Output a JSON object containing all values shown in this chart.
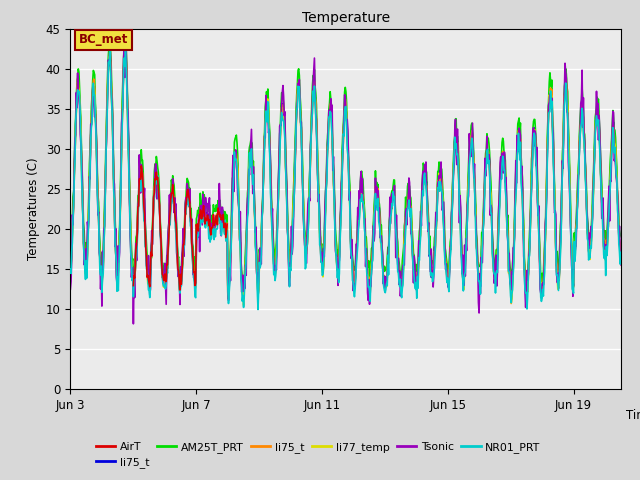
{
  "title": "Temperature",
  "ylabel": "Temperatures (C)",
  "ylim": [
    0,
    45
  ],
  "xlim": [
    0,
    17.5
  ],
  "annotation_text": "BC_met",
  "fig_bg": "#d8d8d8",
  "ax_bg": "#ebebeb",
  "grid_color": "#ffffff",
  "x_tick_labels": [
    "Jun 3",
    "Jun 7",
    "Jun 11",
    "Jun 15",
    "Jun 19"
  ],
  "x_tick_positions": [
    0,
    4,
    8,
    12,
    16
  ],
  "y_tick_positions": [
    0,
    5,
    10,
    15,
    20,
    25,
    30,
    35,
    40,
    45
  ],
  "colors": {
    "AirT": "#dd0000",
    "li75_blue": "#0000dd",
    "AM25T_PRT": "#00dd00",
    "li75_orange": "#ff8800",
    "li77_temp": "#dddd00",
    "Tsonic": "#9900bb",
    "NR01_PRT": "#00cccc"
  },
  "legend_entries": [
    {
      "label": "AirT",
      "color": "#dd0000"
    },
    {
      "label": "li75_t",
      "color": "#0000dd"
    },
    {
      "label": "AM25T_PRT",
      "color": "#00dd00"
    },
    {
      "label": "li75_t",
      "color": "#ff8800"
    },
    {
      "label": "li77_temp",
      "color": "#dddd00"
    },
    {
      "label": "Tsonic",
      "color": "#9900bb"
    },
    {
      "label": "NR01_PRT",
      "color": "#00cccc"
    }
  ],
  "base_peaks": [
    38,
    42,
    27,
    25,
    22,
    30,
    36,
    38,
    35,
    25,
    24,
    27,
    32,
    30,
    32,
    38,
    35,
    32
  ],
  "base_troughs": [
    15,
    14,
    13,
    13,
    20,
    12,
    15,
    17,
    15,
    13,
    13,
    14,
    14,
    14,
    12,
    13,
    17,
    17
  ],
  "lw": 1.2
}
